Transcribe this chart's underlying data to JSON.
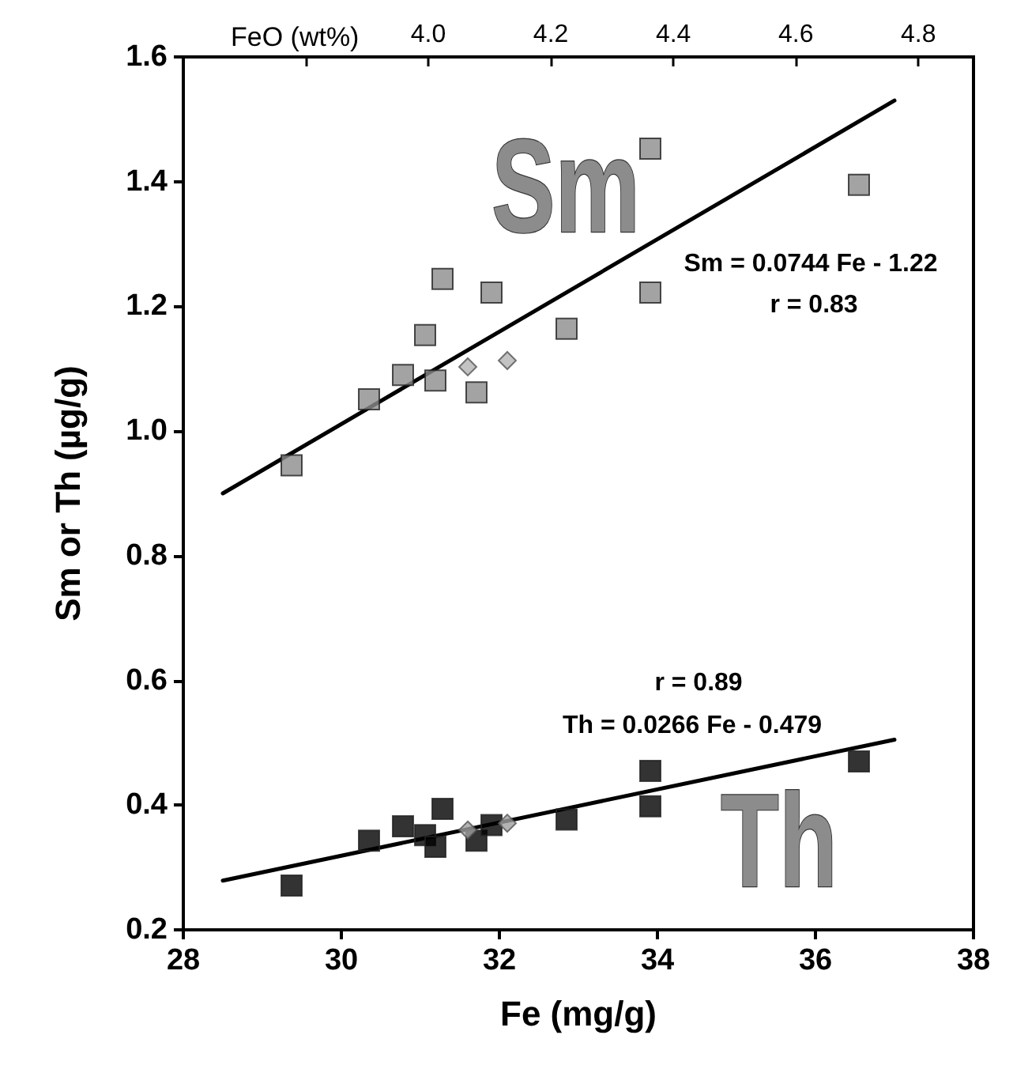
{
  "chart_data": {
    "type": "scatter",
    "xlabel": "Fe (mg/g)",
    "ylabel": "Sm or Th (µg/g)",
    "x2label": "FeO (wt%)",
    "xlim": [
      28,
      38
    ],
    "xticks": [
      28,
      30,
      32,
      34,
      36,
      38
    ],
    "ylim": [
      0.2,
      1.6
    ],
    "yticks": [
      {
        "value": 0.2,
        "label": "0.2"
      },
      {
        "value": 0.4,
        "label": "0.4"
      },
      {
        "value": 0.6,
        "label": "0.6"
      },
      {
        "value": 0.8,
        "label": "0.8"
      },
      {
        "value": 1.0,
        "label": "1.0"
      },
      {
        "value": 1.2,
        "label": "1.2"
      },
      {
        "value": 1.4,
        "label": "1.4"
      },
      {
        "value": 1.6,
        "label": "1.6"
      }
    ],
    "x2lim": [
      3.6,
      4.89
    ],
    "x2ticks": [
      {
        "value": 3.8,
        "label": null
      },
      {
        "value": 4.0,
        "label": "4.0"
      },
      {
        "value": 4.2,
        "label": "4.2"
      },
      {
        "value": 4.4,
        "label": "4.4"
      },
      {
        "value": 4.6,
        "label": "4.6"
      },
      {
        "value": 4.8,
        "label": "4.8"
      }
    ],
    "grid": false,
    "series": [
      {
        "marker": "square",
        "color": "#8c8c8c",
        "x": [
          29.37,
          30.35,
          30.78,
          31.06,
          31.19,
          31.28,
          31.71,
          31.9,
          32.85,
          33.91,
          33.91,
          36.55
        ],
        "values": [
          0.945,
          1.051,
          1.09,
          1.154,
          1.081,
          1.244,
          1.062,
          1.222,
          1.164,
          1.222,
          1.453,
          1.395
        ]
      },
      {
        "marker": "diamond",
        "color": "#b4b4b4",
        "x": [
          31.6,
          32.1
        ],
        "values": [
          1.103,
          1.113
        ]
      },
      {
        "type": "line",
        "marker": "none",
        "color": "#000000",
        "x": [
          28.5,
          37
        ],
        "values": [
          0.9,
          1.53
        ]
      },
      {
        "marker": "square",
        "color": "#000000",
        "x": [
          29.37,
          30.35,
          30.78,
          31.06,
          31.19,
          31.28,
          31.71,
          31.9,
          32.85,
          33.91,
          33.91,
          36.55
        ],
        "values": [
          0.271,
          0.343,
          0.366,
          0.352,
          0.333,
          0.394,
          0.343,
          0.368,
          0.377,
          0.455,
          0.398,
          0.47
        ]
      },
      {
        "marker": "diamond",
        "color": "#a0a0a0",
        "x": [
          31.6,
          32.1
        ],
        "values": [
          0.36,
          0.371
        ]
      },
      {
        "type": "line",
        "marker": "none",
        "color": "#000000",
        "x": [
          28.5,
          37
        ],
        "values": [
          0.279,
          0.505
        ]
      }
    ],
    "annotations": [
      "Sm",
      "Sm = 0.0744 Fe - 1.22",
      "r = 0.83",
      "r = 0.89",
      "Th = 0.0266 Fe - 0.479",
      "Th"
    ]
  }
}
